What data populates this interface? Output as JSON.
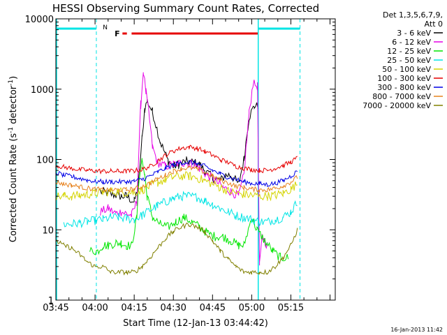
{
  "chart_data": {
    "type": "line",
    "title": "HESSI Observing Summary Count Rates, Corrected",
    "xlabel": "Start Time (12-Jan-13 03:44:42)",
    "ylabel": "Corrected Count Rate (s",
    "ylabel_sup": "-1",
    "ylabel_tail": " detector",
    "ylabel_tail_sup": "-1",
    "ylabel_close": ")",
    "xlim": [
      225,
      332
    ],
    "ylim": [
      1,
      10000
    ],
    "y_scale": "log",
    "x_ticks": [
      {
        "v": 225,
        "label": "03:45"
      },
      {
        "v": 240,
        "label": "04:00"
      },
      {
        "v": 255,
        "label": "04:15"
      },
      {
        "v": 270,
        "label": "04:30"
      },
      {
        "v": 285,
        "label": "04:45"
      },
      {
        "v": 300,
        "label": "05:00"
      },
      {
        "v": 315,
        "label": "05:15"
      }
    ],
    "y_ticks": [
      {
        "v": 1,
        "label": "1"
      },
      {
        "v": 10,
        "label": "10"
      },
      {
        "v": 100,
        "label": "100"
      },
      {
        "v": 1000,
        "label": "1000"
      },
      {
        "v": 10000,
        "label": "10000"
      }
    ],
    "legend_header": [
      "Det 1,3,5,6,7,9,",
      "Att 0"
    ],
    "legend_position": "right",
    "timestamp": "16-Jan-2013 11:42",
    "flags": {
      "night_label": "N",
      "flare_label": "F",
      "night_color": "#00e5e5",
      "flare_color": "#e60000",
      "night_segments": [
        [
          225,
          240.5
        ],
        [
          302.5,
          318.5
        ]
      ],
      "flare_segments": [
        [
          250.5,
          252.2
        ],
        [
          254,
          302.5
        ]
      ],
      "saa_lines": [
        240.5,
        318.5
      ],
      "solid_line": 302.5
    },
    "series": [
      {
        "name": "3 - 6 keV",
        "color": "#000000",
        "x": [
          240,
          242,
          245,
          248,
          250,
          252,
          255,
          256.5,
          258,
          259,
          260,
          262,
          265,
          268,
          270,
          272,
          275,
          278,
          280,
          282,
          285,
          288,
          290,
          292,
          295,
          297,
          299,
          301,
          302.4
        ],
        "y": [
          null,
          35,
          33,
          31,
          30,
          30,
          25,
          40,
          200,
          520,
          680,
          480,
          180,
          95,
          80,
          85,
          95,
          90,
          85,
          70,
          55,
          50,
          60,
          60,
          45,
          100,
          400,
          580,
          560
        ]
      },
      {
        "name": "6 - 12 keV",
        "color": "#e600e6",
        "x": [
          240,
          242,
          245,
          248,
          250,
          252,
          254,
          256,
          257.5,
          258.5,
          259.5,
          260.5,
          262,
          264,
          267,
          270,
          274,
          277,
          280,
          283,
          286,
          289,
          292,
          295,
          297,
          299,
          300.5,
          302.2,
          303,
          304,
          306,
          310
        ],
        "y": [
          null,
          18,
          20,
          17,
          18,
          17,
          16,
          25,
          600,
          1800,
          900,
          500,
          150,
          90,
          80,
          85,
          90,
          88,
          75,
          60,
          50,
          40,
          35,
          30,
          60,
          450,
          1200,
          1100,
          3,
          8,
          6,
          null
        ]
      },
      {
        "name": "12 - 25 keV",
        "color": "#00e600",
        "x": [
          238,
          241,
          243,
          245,
          248,
          250,
          252,
          254,
          256,
          257,
          258,
          259,
          260,
          262,
          265,
          268,
          271,
          274,
          277,
          280,
          283,
          286,
          289,
          292,
          295,
          297,
          300,
          302,
          305,
          308,
          311,
          314,
          317
        ],
        "y": [
          5,
          5,
          6,
          6,
          6.5,
          6.5,
          6,
          6,
          15,
          60,
          100,
          60,
          30,
          15,
          12,
          11,
          13,
          15,
          13,
          11,
          9,
          8,
          8,
          7,
          6,
          6,
          15,
          10,
          7,
          5,
          4,
          4,
          null
        ]
      },
      {
        "name": "25 - 50 keV",
        "color": "#00e5e5",
        "x": [
          225,
          228,
          231,
          234,
          237,
          240,
          243,
          246,
          249,
          252,
          255,
          258,
          261,
          264,
          267,
          270,
          273,
          276,
          279,
          282,
          285,
          288,
          291,
          294,
          297,
          300,
          303,
          306,
          309,
          312,
          315,
          317.5
        ],
        "y": [
          null,
          12,
          12,
          12.5,
          13,
          13.5,
          14,
          15,
          15,
          14.5,
          14,
          16,
          19,
          22,
          25,
          28,
          30,
          30,
          29,
          26,
          23,
          20,
          18,
          16,
          15,
          14,
          13,
          13,
          14,
          15,
          18,
          25
        ]
      },
      {
        "name": "50 - 100 keV",
        "color": "#d4d400",
        "x": [
          225,
          228,
          231,
          234,
          237,
          240,
          243,
          246,
          249,
          252,
          255,
          258,
          261,
          264,
          267,
          270,
          273,
          276,
          279,
          282,
          285,
          288,
          291,
          294,
          297,
          300,
          303,
          306,
          309,
          312,
          315,
          317.5
        ],
        "y": [
          30,
          30,
          30,
          31,
          32,
          33,
          34,
          35,
          35,
          34,
          34,
          37,
          42,
          47,
          52,
          56,
          58,
          58,
          55,
          50,
          45,
          40,
          36,
          33,
          32,
          31,
          30,
          30,
          31,
          33,
          38,
          45
        ]
      },
      {
        "name": "100 - 300 keV",
        "color": "#e60000",
        "x": [
          225,
          228,
          231,
          234,
          237,
          240,
          243,
          246,
          249,
          252,
          255,
          258,
          261,
          264,
          267,
          270,
          273,
          276,
          279,
          282,
          285,
          288,
          291,
          294,
          297,
          300,
          303,
          306,
          309,
          312,
          315,
          317.5
        ],
        "y": [
          82,
          78,
          75,
          72,
          70,
          69,
          68,
          68,
          68,
          68,
          69,
          72,
          80,
          95,
          115,
          132,
          145,
          150,
          145,
          130,
          115,
          100,
          90,
          80,
          75,
          72,
          70,
          70,
          75,
          82,
          92,
          105
        ]
      },
      {
        "name": "300 - 800 keV",
        "color": "#0000e6",
        "x": [
          225,
          228,
          231,
          234,
          237,
          240,
          243,
          246,
          249,
          252,
          255,
          258,
          261,
          264,
          267,
          270,
          273,
          276,
          279,
          282,
          285,
          288,
          291,
          294,
          297,
          300,
          303,
          306,
          309,
          312,
          315,
          317.5
        ],
        "y": [
          65,
          60,
          57,
          54,
          51,
          49,
          48,
          48,
          48,
          48,
          49,
          52,
          58,
          66,
          75,
          84,
          90,
          92,
          88,
          80,
          70,
          62,
          56,
          52,
          48,
          46,
          45,
          44,
          46,
          50,
          58,
          68
        ]
      },
      {
        "name": "800 - 7000 keV",
        "color": "#e6821e",
        "x": [
          225,
          228,
          231,
          234,
          237,
          240,
          243,
          246,
          249,
          252,
          255,
          258,
          261,
          264,
          267,
          270,
          273,
          276,
          279,
          282,
          285,
          288,
          291,
          294,
          297,
          300,
          303,
          306,
          309,
          312,
          315,
          317.5
        ],
        "y": [
          48,
          45,
          43,
          41,
          39,
          38,
          37,
          37,
          37,
          37,
          38,
          41,
          46,
          53,
          60,
          68,
          74,
          76,
          73,
          66,
          58,
          51,
          46,
          42,
          40,
          38,
          37,
          37,
          39,
          42,
          48,
          56
        ]
      },
      {
        "name": "7000 - 20000 keV",
        "color": "#808000",
        "x": [
          225,
          228,
          231,
          234,
          237,
          240,
          243,
          246,
          249,
          252,
          255,
          258,
          261,
          264,
          267,
          270,
          273,
          276,
          279,
          282,
          285,
          288,
          291,
          294,
          297,
          300,
          303,
          306,
          309,
          312,
          315,
          317.5
        ],
        "y": [
          7,
          6,
          5.5,
          4.5,
          3.5,
          3,
          3,
          2.5,
          2.5,
          2.5,
          2.5,
          3,
          4,
          5.5,
          7.5,
          9.5,
          11,
          12,
          11,
          9.5,
          7,
          5,
          3.8,
          3,
          2.5,
          2.5,
          2.5,
          2.5,
          3,
          4,
          6,
          10
        ]
      }
    ]
  }
}
